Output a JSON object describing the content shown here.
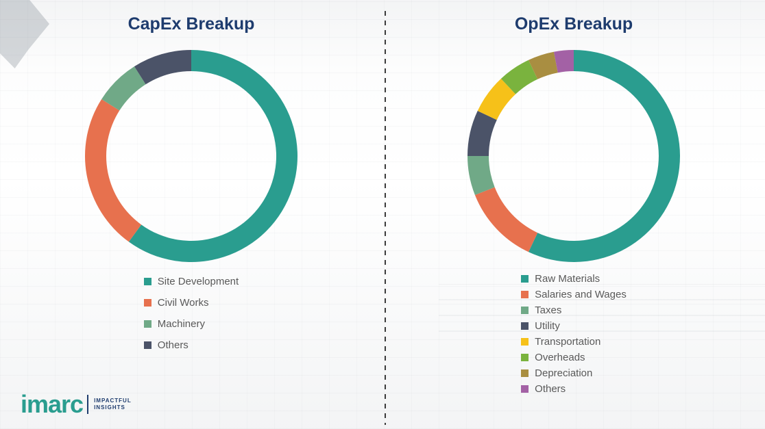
{
  "chart_data": [
    {
      "type": "pie",
      "variant": "donut",
      "title": "CapEx Breakup",
      "legend_position": "bottom",
      "values_shown_on_chart": false,
      "segments": [
        {
          "label": "Site Development",
          "value": 60,
          "color": "#2a9d8f"
        },
        {
          "label": "Civil Works",
          "value": 24,
          "color": "#e7714e"
        },
        {
          "label": "Machinery",
          "value": 7,
          "color": "#70a987"
        },
        {
          "label": "Others",
          "value": 9,
          "color": "#4b5368"
        }
      ]
    },
    {
      "type": "pie",
      "variant": "donut",
      "title": "OpEx Breakup",
      "legend_position": "bottom",
      "values_shown_on_chart": false,
      "segments": [
        {
          "label": "Raw Materials",
          "value": 57,
          "color": "#2a9d8f"
        },
        {
          "label": "Salaries and Wages",
          "value": 12,
          "color": "#e7714e"
        },
        {
          "label": "Taxes",
          "value": 6,
          "color": "#70a987"
        },
        {
          "label": "Utility",
          "value": 7,
          "color": "#4b5368"
        },
        {
          "label": "Transportation",
          "value": 6,
          "color": "#f6c119"
        },
        {
          "label": "Overheads",
          "value": 5,
          "color": "#7ab33e"
        },
        {
          "label": "Depreciation",
          "value": 4,
          "color": "#a98e41"
        },
        {
          "label": "Others",
          "value": 3,
          "color": "#a361a5"
        }
      ]
    }
  ],
  "logo": {
    "brand": "imarc",
    "brand_color": "#2a9d8f",
    "tagline_line1": "IMPACTFUL",
    "tagline_line2": "INSIGHTS"
  }
}
